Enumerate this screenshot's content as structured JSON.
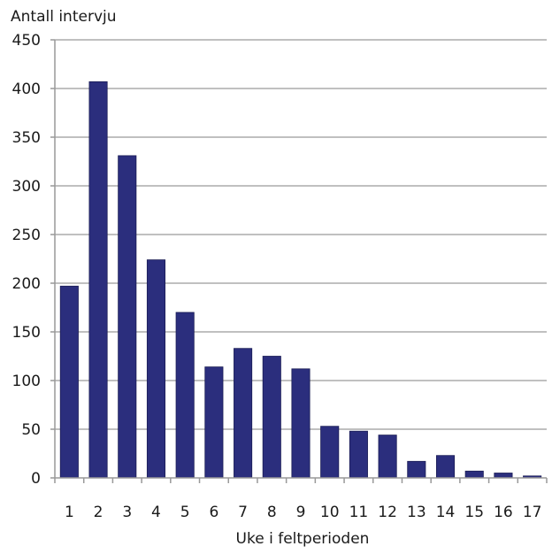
{
  "chart_data": {
    "type": "bar",
    "title": "",
    "ylabel": "Antall intervju",
    "xlabel": "Uke i feltperioden",
    "categories": [
      "1",
      "2",
      "3",
      "4",
      "5",
      "6",
      "7",
      "8",
      "9",
      "10",
      "11",
      "12",
      "13",
      "14",
      "15",
      "16",
      "17"
    ],
    "values": [
      197,
      407,
      331,
      224,
      170,
      114,
      133,
      125,
      112,
      53,
      48,
      44,
      17,
      23,
      7,
      5,
      2
    ],
    "ylim": [
      0,
      450
    ],
    "yticks": [
      0,
      50,
      100,
      150,
      200,
      250,
      300,
      350,
      400,
      450
    ],
    "grid": true,
    "legend": "none",
    "bar_color": "#2b2e7d",
    "grid_color": "#c0c0c0",
    "axis_color": "#999999"
  }
}
